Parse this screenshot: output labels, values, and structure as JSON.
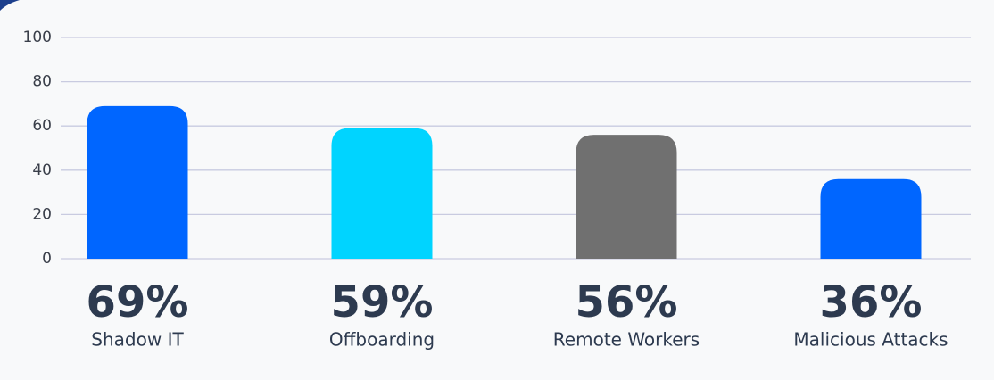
{
  "chart_data": {
    "type": "bar",
    "categories": [
      "Shadow IT",
      "Offboarding",
      "Remote Workers",
      "Malicious Attacks"
    ],
    "values": [
      69,
      59,
      56,
      36
    ],
    "value_labels": [
      "69%",
      "59%",
      "56%",
      "36%"
    ],
    "colors": [
      "#0066ff",
      "#00d4ff",
      "#707070",
      "#0066ff"
    ],
    "ylim": [
      0,
      100
    ],
    "yticks": [
      0,
      20,
      40,
      60,
      80,
      100
    ],
    "grid": true
  }
}
